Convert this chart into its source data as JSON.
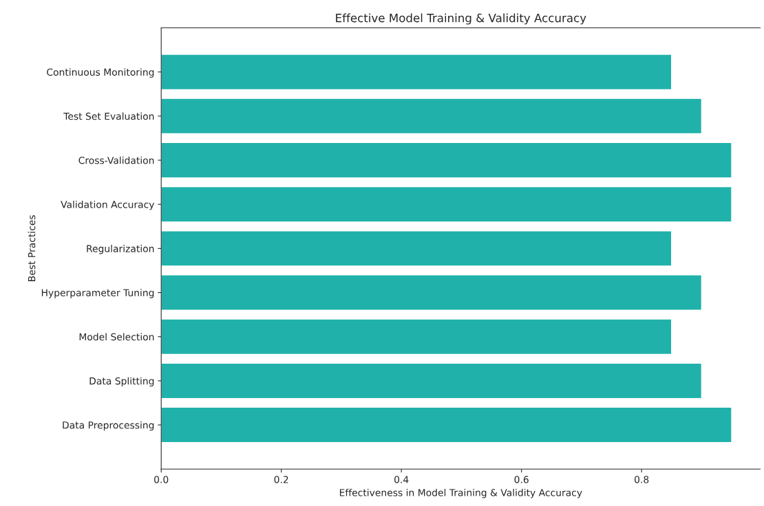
{
  "chart_data": {
    "type": "bar",
    "orientation": "horizontal",
    "title": "Effective Model Training & Validity Accuracy",
    "xlabel": "Effectiveness in Model Training & Validity Accuracy",
    "ylabel": "Best Practices",
    "categories": [
      "Continuous Monitoring",
      "Test Set Evaluation",
      "Cross-Validation",
      "Validation Accuracy",
      "Regularization",
      "Hyperparameter Tuning",
      "Model Selection",
      "Data Splitting",
      "Data Preprocessing"
    ],
    "values": [
      0.85,
      0.9,
      0.95,
      0.95,
      0.85,
      0.9,
      0.85,
      0.9,
      0.95
    ],
    "color": "#20b2aa",
    "xlim": [
      0,
      0.9975
    ],
    "xticks": [
      {
        "value": 0,
        "label": "0.0"
      },
      0.2,
      0.4,
      0.6,
      0.8
    ],
    "grid": false,
    "legend": false
  }
}
